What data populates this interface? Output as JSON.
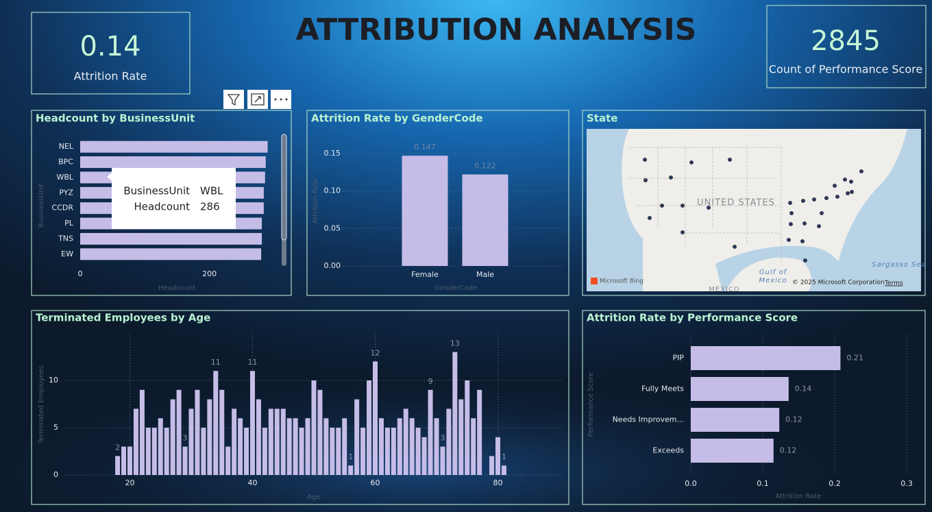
{
  "title": "ATTRIBUTION ANALYSIS",
  "cards": [
    {
      "value": 0.14,
      "label": "Attrition Rate"
    },
    {
      "value": 2845,
      "label": "Count of Performance Score"
    }
  ],
  "tooltip": {
    "fields": [
      {
        "name": "BusinessUnit",
        "value": "WBL"
      },
      {
        "name": "Headcount",
        "value": 286
      }
    ]
  },
  "map": {
    "title": "State",
    "labels": [
      "UNITED STATES",
      "Gulf of",
      "Mexico",
      "Sargasso Sea",
      "MEXICO"
    ],
    "logo": "Microsoft Bing",
    "attribution": "© 2025 Microsoft Corporation",
    "terms": "Terms"
  },
  "chart_data": [
    {
      "type": "bar",
      "orientation": "horizontal",
      "title": "Headcount by BusinessUnit",
      "categories": [
        "NEL",
        "BPC",
        "WBL",
        "PYZ",
        "CCDR",
        "PL",
        "TNS",
        "EW"
      ],
      "values": [
        290,
        287,
        286,
        284,
        284,
        281,
        281,
        280
      ],
      "color": "#c5bde8",
      "xlim": [
        0,
        300
      ],
      "xticks": [
        0,
        200
      ],
      "x_label": "Headcount",
      "y_label": "BusinessUnit",
      "grid": false
    },
    {
      "type": "bar",
      "orientation": "vertical",
      "title": "Attrition Rate by GenderCode",
      "categories": [
        "Female",
        "Male"
      ],
      "values": [
        0.147,
        0.122
      ],
      "value_labels": [
        "0.147",
        "0.122"
      ],
      "color": "#c5bde8",
      "ylim": [
        0,
        0.17
      ],
      "yticks": [
        {
          "value": 0,
          "label": "0.00"
        },
        {
          "value": 0.05,
          "label": "0.05"
        },
        {
          "value": 0.1,
          "label": "0.10"
        },
        {
          "value": 0.15,
          "label": "0.15"
        }
      ],
      "x_label": "GenderCode",
      "y_label": "Attrition Rate",
      "grid": true
    },
    {
      "type": "histogram",
      "title": "Terminated Employees by Age",
      "x": [
        18,
        19,
        20,
        21,
        22,
        23,
        24,
        25,
        26,
        27,
        28,
        29,
        30,
        31,
        32,
        33,
        34,
        35,
        36,
        37,
        38,
        39,
        40,
        41,
        42,
        43,
        44,
        45,
        46,
        47,
        48,
        49,
        50,
        51,
        52,
        53,
        54,
        55,
        56,
        57,
        58,
        59,
        60,
        61,
        62,
        63,
        64,
        65,
        66,
        67,
        68,
        69,
        70,
        71,
        72,
        73,
        74,
        75,
        76,
        77,
        79,
        80,
        81
      ],
      "values": [
        2,
        3,
        3,
        7,
        9,
        5,
        5,
        6,
        5,
        8,
        9,
        3,
        7,
        9,
        5,
        8,
        11,
        9,
        3,
        7,
        6,
        5,
        11,
        8,
        5,
        7,
        7,
        7,
        6,
        6,
        5,
        6,
        10,
        9,
        6,
        5,
        5,
        6,
        1,
        8,
        5,
        10,
        12,
        6,
        5,
        5,
        6,
        7,
        6,
        5,
        4,
        9,
        6,
        3,
        7,
        13,
        8,
        10,
        6,
        9,
        2,
        4,
        1
      ],
      "value_labels": [
        "2",
        null,
        null,
        null,
        null,
        null,
        null,
        null,
        null,
        null,
        null,
        "3",
        null,
        null,
        null,
        null,
        "11",
        null,
        null,
        null,
        null,
        null,
        "11",
        null,
        null,
        null,
        null,
        null,
        null,
        null,
        null,
        null,
        null,
        null,
        null,
        null,
        null,
        null,
        "1",
        null,
        null,
        null,
        "12",
        null,
        null,
        null,
        null,
        null,
        null,
        null,
        null,
        "9",
        null,
        "3",
        null,
        "13",
        null,
        null,
        null,
        null,
        null,
        null,
        "1"
      ],
      "color": "#c5bde8",
      "xlim": [
        10,
        90
      ],
      "xticks": [
        20,
        40,
        60,
        80
      ],
      "ylim": [
        0,
        15
      ],
      "yticks": [
        0,
        5,
        10
      ],
      "x_label": "Age",
      "y_label": "Terminated Employees",
      "grid": true
    },
    {
      "type": "bar",
      "orientation": "horizontal",
      "title": "Attrition Rate by Performance Score",
      "categories": [
        "PIP",
        "Fully Meets",
        "Needs Improvem...",
        "Exceeds"
      ],
      "values": [
        0.208,
        0.136,
        0.123,
        0.115
      ],
      "value_labels": [
        "0.21",
        "0.14",
        "0.12",
        "0.12"
      ],
      "color": "#c5bde8",
      "xlim": [
        0,
        0.3
      ],
      "xticks": [
        {
          "value": 0,
          "label": "0.0"
        },
        {
          "value": 0.1,
          "label": "0.1"
        },
        {
          "value": 0.2,
          "label": "0.2"
        },
        {
          "value": 0.3,
          "label": "0.3"
        }
      ],
      "x_label": "Attrition Rate",
      "y_label": "Performance Score",
      "grid": true
    }
  ]
}
